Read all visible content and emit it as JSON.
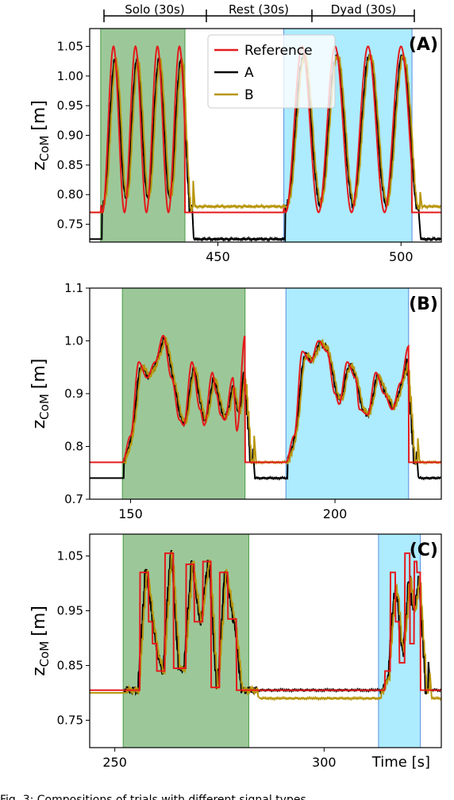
{
  "phases": {
    "solo": "Solo (30s)",
    "rest": "Rest (30s)",
    "dyad": "Dyad (30s)"
  },
  "ylabel_main": "z",
  "ylabel_sub": "CoM",
  "ylabel_unit": "[m]",
  "colors": {
    "reference": "#e41a1c",
    "A": "#000000",
    "B": "#b8960c",
    "solo_shade": "#4a9a45",
    "dyad_shade": "#33ccff"
  },
  "caption_fragment": "Fig. 3: Compositions of trials with different signal types",
  "chart_data": [
    {
      "type": "line",
      "panel_label": "(A)",
      "legend": [
        "Reference",
        "A",
        "B"
      ],
      "legend_position": "top-right",
      "xlim": [
        415,
        511
      ],
      "ylim": [
        0.72,
        1.08
      ],
      "xticks": [
        450,
        500
      ],
      "yticks": [
        0.75,
        0.8,
        0.85,
        0.9,
        0.95,
        1.0,
        1.05
      ],
      "ytick_labels": [
        "0.75",
        "0.80",
        "0.85",
        "0.90",
        "0.95",
        "1.00",
        "1.05"
      ],
      "xlabel": "",
      "solo_span": [
        418,
        441
      ],
      "dyad_span": [
        468,
        503
      ],
      "signal": "sine",
      "reference_base": 0.77,
      "reference_peak": 1.05,
      "reference_trough": 0.77,
      "solo_peaks": [
        421.5,
        427.5,
        433.5,
        439.5
      ],
      "dyad_peaks": [
        473,
        482,
        491,
        500
      ],
      "rest_level": {
        "reference": 0.77,
        "A": 0.725,
        "B": 0.78
      },
      "base_level": {
        "reference": 0.77,
        "A": 0.725,
        "B": 0.77
      }
    },
    {
      "type": "line",
      "panel_label": "(B)",
      "xlim": [
        140,
        226
      ],
      "ylim": [
        0.7,
        1.1
      ],
      "xticks": [
        150,
        200
      ],
      "yticks": [
        0.7,
        0.8,
        0.9,
        1.0,
        1.1
      ],
      "ytick_labels": [
        "0.7",
        "0.8",
        "0.9",
        "1.0",
        "1.1"
      ],
      "xlabel": "",
      "solo_span": [
        148,
        178
      ],
      "dyad_span": [
        188,
        218
      ],
      "signal": "random",
      "reference_base": 0.77,
      "rest_level": {
        "reference": 0.77,
        "A": 0.74,
        "B": 0.77
      },
      "base_level": {
        "reference": 0.77,
        "A": 0.74,
        "B": 0.77
      }
    },
    {
      "type": "line",
      "panel_label": "(C)",
      "xlim": [
        244,
        328
      ],
      "ylim": [
        0.7,
        1.09
      ],
      "xticks": [
        250,
        300
      ],
      "yticks": [
        0.75,
        0.85,
        0.95,
        1.05
      ],
      "ytick_labels": [
        "0.75",
        "0.85",
        "0.95",
        "1.05"
      ],
      "xlabel": "Time [s]",
      "solo_span": [
        252,
        282
      ],
      "dyad_span": [
        313,
        323
      ],
      "signal": "step",
      "reference_base": 0.805,
      "rest_level": {
        "reference": 0.805,
        "A": 0.805,
        "B": 0.79
      },
      "base_level": {
        "reference": 0.805,
        "A": 0.8,
        "B": 0.8
      }
    }
  ]
}
